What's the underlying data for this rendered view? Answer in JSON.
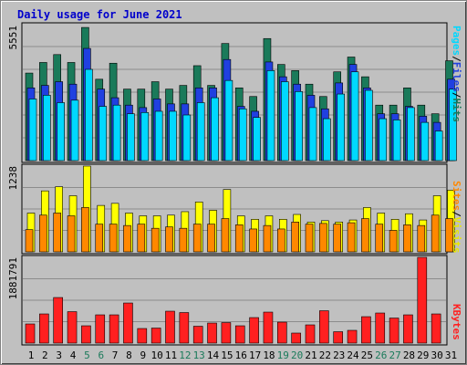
{
  "title": "Daily usage for June 2021",
  "colors": {
    "title": "#0000cc",
    "hits_back": "#1a7a5a",
    "files_mid": "#2040e0",
    "pages_front": "#00d8ff",
    "visits_back": "#ffff00",
    "sites_front": "#ff8800",
    "kbytes": "#ff2020",
    "weekday_label": "#000000",
    "weekend_label": "#1a7a5a"
  },
  "chart_data": [
    {
      "type": "bar",
      "panel": "top",
      "ymax_label": "5551",
      "ylim": [
        0,
        5551
      ],
      "right_legend": [
        "Pages",
        "Files",
        "Hits"
      ],
      "x": [
        1,
        2,
        3,
        4,
        5,
        6,
        7,
        8,
        9,
        10,
        11,
        12,
        13,
        14,
        15,
        16,
        17,
        18,
        19,
        20,
        21,
        22,
        23,
        24,
        25,
        26,
        27,
        28,
        29,
        30,
        31
      ],
      "series": [
        {
          "name": "Hits",
          "values": [
            3550,
            3980,
            4300,
            3980,
            5400,
            3300,
            3950,
            2900,
            2900,
            3200,
            2900,
            3050,
            3850,
            3050,
            4750,
            2950,
            2600,
            4950,
            3900,
            3650,
            3100,
            2600,
            3600,
            4200,
            3400,
            2250,
            2250,
            2950,
            2250,
            1900,
            4050
          ]
        },
        {
          "name": "Files",
          "values": [
            2950,
            3050,
            3200,
            3100,
            4550,
            2900,
            2550,
            2250,
            2150,
            2500,
            2300,
            2300,
            2950,
            2950,
            4100,
            2200,
            2000,
            4000,
            3400,
            3100,
            2650,
            2100,
            3150,
            3900,
            2950,
            1900,
            1900,
            2200,
            1800,
            1550,
            3300
          ]
        },
        {
          "name": "Pages",
          "values": [
            2500,
            2650,
            2350,
            2450,
            3700,
            2200,
            2250,
            1900,
            1950,
            2000,
            2000,
            1850,
            2350,
            2550,
            3250,
            2100,
            1750,
            3650,
            3200,
            2800,
            2150,
            1700,
            2700,
            3600,
            2850,
            1700,
            1650,
            2150,
            1550,
            1200,
            2900
          ]
        }
      ]
    },
    {
      "type": "bar",
      "panel": "middle",
      "ymax_label": "1238",
      "ylim": [
        0,
        1238
      ],
      "right_legend": [
        "Sites",
        "Visits"
      ],
      "x": [
        1,
        2,
        3,
        4,
        5,
        6,
        7,
        8,
        9,
        10,
        11,
        12,
        13,
        14,
        15,
        16,
        17,
        18,
        19,
        20,
        21,
        22,
        23,
        24,
        25,
        26,
        27,
        28,
        29,
        30,
        31
      ],
      "series": [
        {
          "name": "Visits",
          "values": [
            560,
            880,
            940,
            810,
            1238,
            670,
            700,
            560,
            520,
            520,
            530,
            580,
            720,
            600,
            900,
            520,
            470,
            520,
            470,
            540,
            430,
            450,
            430,
            460,
            640,
            560,
            470,
            550,
            460,
            810,
            890
          ]
        },
        {
          "name": "Sites",
          "values": [
            320,
            530,
            560,
            520,
            640,
            400,
            400,
            380,
            400,
            340,
            360,
            340,
            400,
            400,
            480,
            390,
            330,
            380,
            330,
            430,
            400,
            410,
            400,
            420,
            480,
            400,
            310,
            390,
            380,
            530,
            480
          ]
        }
      ]
    },
    {
      "type": "bar",
      "panel": "bottom",
      "ymax_label": "1881791",
      "ylim": [
        0,
        1881791
      ],
      "right_legend": [
        "KBytes"
      ],
      "x": [
        1,
        2,
        3,
        4,
        5,
        6,
        7,
        8,
        9,
        10,
        11,
        12,
        13,
        14,
        15,
        16,
        17,
        18,
        19,
        20,
        21,
        22,
        23,
        24,
        25,
        26,
        27,
        28,
        29,
        30,
        31
      ],
      "series": [
        {
          "name": "KBytes",
          "values": [
            420000,
            640000,
            1000000,
            690000,
            380000,
            620000,
            620000,
            880000,
            320000,
            330000,
            700000,
            670000,
            370000,
            440000,
            450000,
            380000,
            560000,
            680000,
            460000,
            220000,
            400000,
            710000,
            250000,
            280000,
            580000,
            660000,
            550000,
            620000,
            1881791,
            640000,
            null
          ]
        }
      ]
    }
  ],
  "x_axis": {
    "labels": [
      "1",
      "2",
      "3",
      "4",
      "5",
      "6",
      "7",
      "8",
      "9",
      "10",
      "11",
      "12",
      "13",
      "14",
      "15",
      "16",
      "17",
      "18",
      "19",
      "20",
      "21",
      "22",
      "23",
      "24",
      "25",
      "26",
      "27",
      "28",
      "29",
      "30",
      "31"
    ],
    "weekend_days": [
      5,
      6,
      12,
      13,
      19,
      20,
      26,
      27
    ]
  },
  "right_labels": {
    "top": {
      "pages": "Pages",
      "files": "Files",
      "hits": "Hits",
      "sep": "/"
    },
    "middle": {
      "sites": "Sites",
      "visits": "Visits",
      "sep": "/"
    },
    "bottom": {
      "kbytes": "KBytes"
    }
  }
}
